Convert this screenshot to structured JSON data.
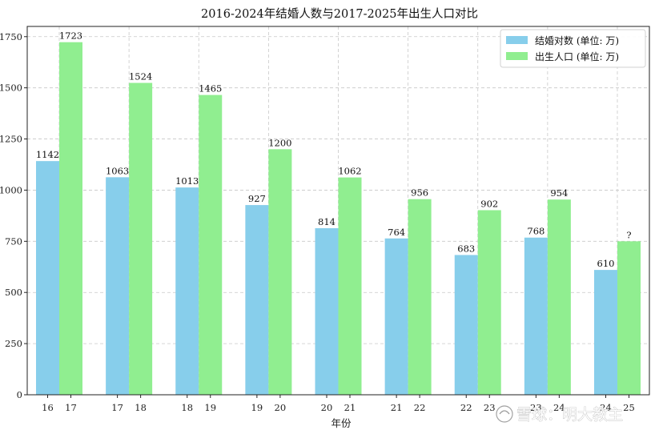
{
  "chart_data": {
    "type": "bar",
    "title": "2016-2024年结婚人数与2017-2025年出生人口对比",
    "xlabel": "年份",
    "ylabel": "",
    "ylim": [
      0,
      1800
    ],
    "yticks": [
      0,
      250,
      500,
      750,
      1000,
      1250,
      1500,
      1750
    ],
    "grid": true,
    "legend_position": "top-right",
    "categories": [
      {
        "marriage_year": "16",
        "birth_year": "17"
      },
      {
        "marriage_year": "17",
        "birth_year": "18"
      },
      {
        "marriage_year": "18",
        "birth_year": "19"
      },
      {
        "marriage_year": "19",
        "birth_year": "20"
      },
      {
        "marriage_year": "20",
        "birth_year": "21"
      },
      {
        "marriage_year": "21",
        "birth_year": "22"
      },
      {
        "marriage_year": "22",
        "birth_year": "23"
      },
      {
        "marriage_year": "23",
        "birth_year": "24"
      },
      {
        "marriage_year": "24",
        "birth_year": "25"
      }
    ],
    "series": [
      {
        "name": "结婚对数 (单位: 万)",
        "color": "#87ceeb",
        "values": [
          1142,
          1063,
          1013,
          927,
          814,
          764,
          683,
          768,
          610
        ],
        "labels": [
          "1142",
          "1063",
          "1013",
          "927",
          "814",
          "764",
          "683",
          "768",
          "610"
        ]
      },
      {
        "name": "出生人口 (单位: 万)",
        "color": "#90ee90",
        "values": [
          1723,
          1524,
          1465,
          1200,
          1062,
          956,
          902,
          954,
          750
        ],
        "labels": [
          "1723",
          "1524",
          "1465",
          "1200",
          "1062",
          "956",
          "902",
          "954",
          "?"
        ]
      }
    ]
  },
  "watermark": {
    "text": "雪球：明大教主",
    "icon": "snowball-logo-icon"
  }
}
